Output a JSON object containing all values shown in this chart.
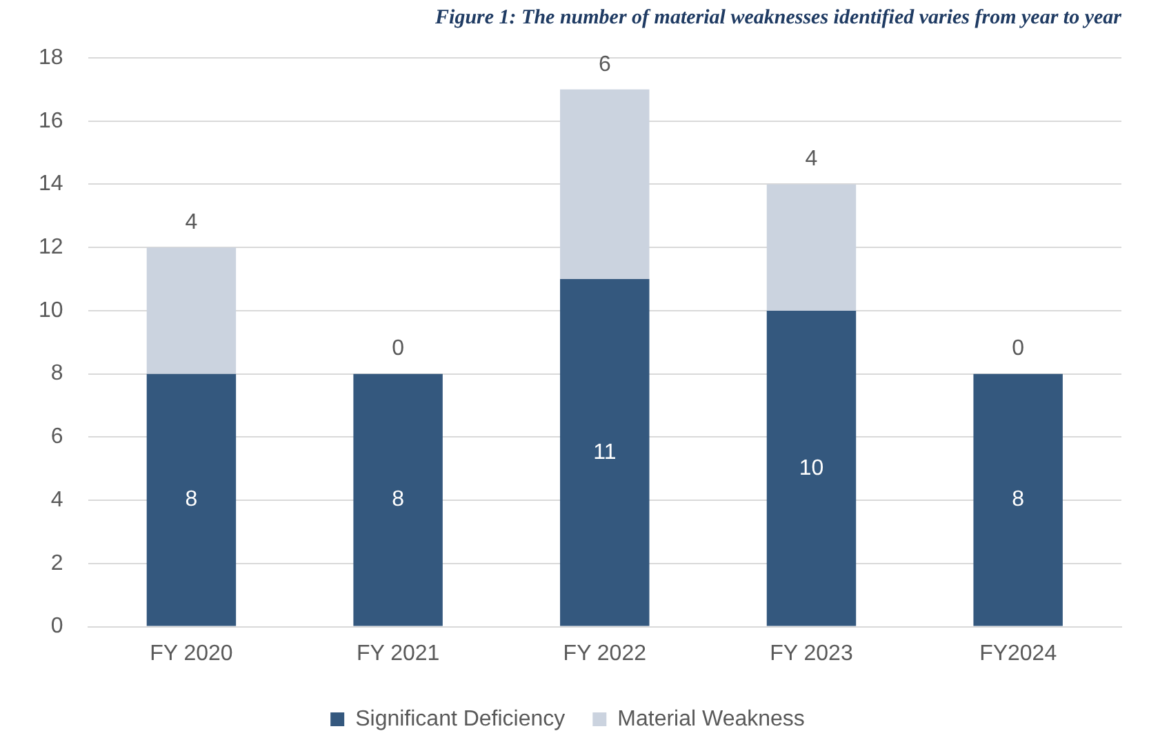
{
  "chart_data": {
    "type": "bar",
    "title": "Figure 1: The number of material weaknesses identified varies from year to year",
    "categories": [
      "FY 2020",
      "FY 2021",
      "FY 2022",
      "FY 2023",
      "FY2024"
    ],
    "series": [
      {
        "name": "Significant Deficiency",
        "color": "#34587e",
        "values": [
          8,
          8,
          11,
          10,
          8
        ]
      },
      {
        "name": "Material Weakness",
        "color": "#cbd3df",
        "values": [
          4,
          0,
          6,
          4,
          0
        ]
      }
    ],
    "stacked": true,
    "ylim": [
      0,
      18
    ],
    "yticks": [
      0,
      2,
      4,
      6,
      8,
      10,
      12,
      14,
      16,
      18
    ],
    "grid": "y",
    "legend": "bottom",
    "data_labels": true
  }
}
